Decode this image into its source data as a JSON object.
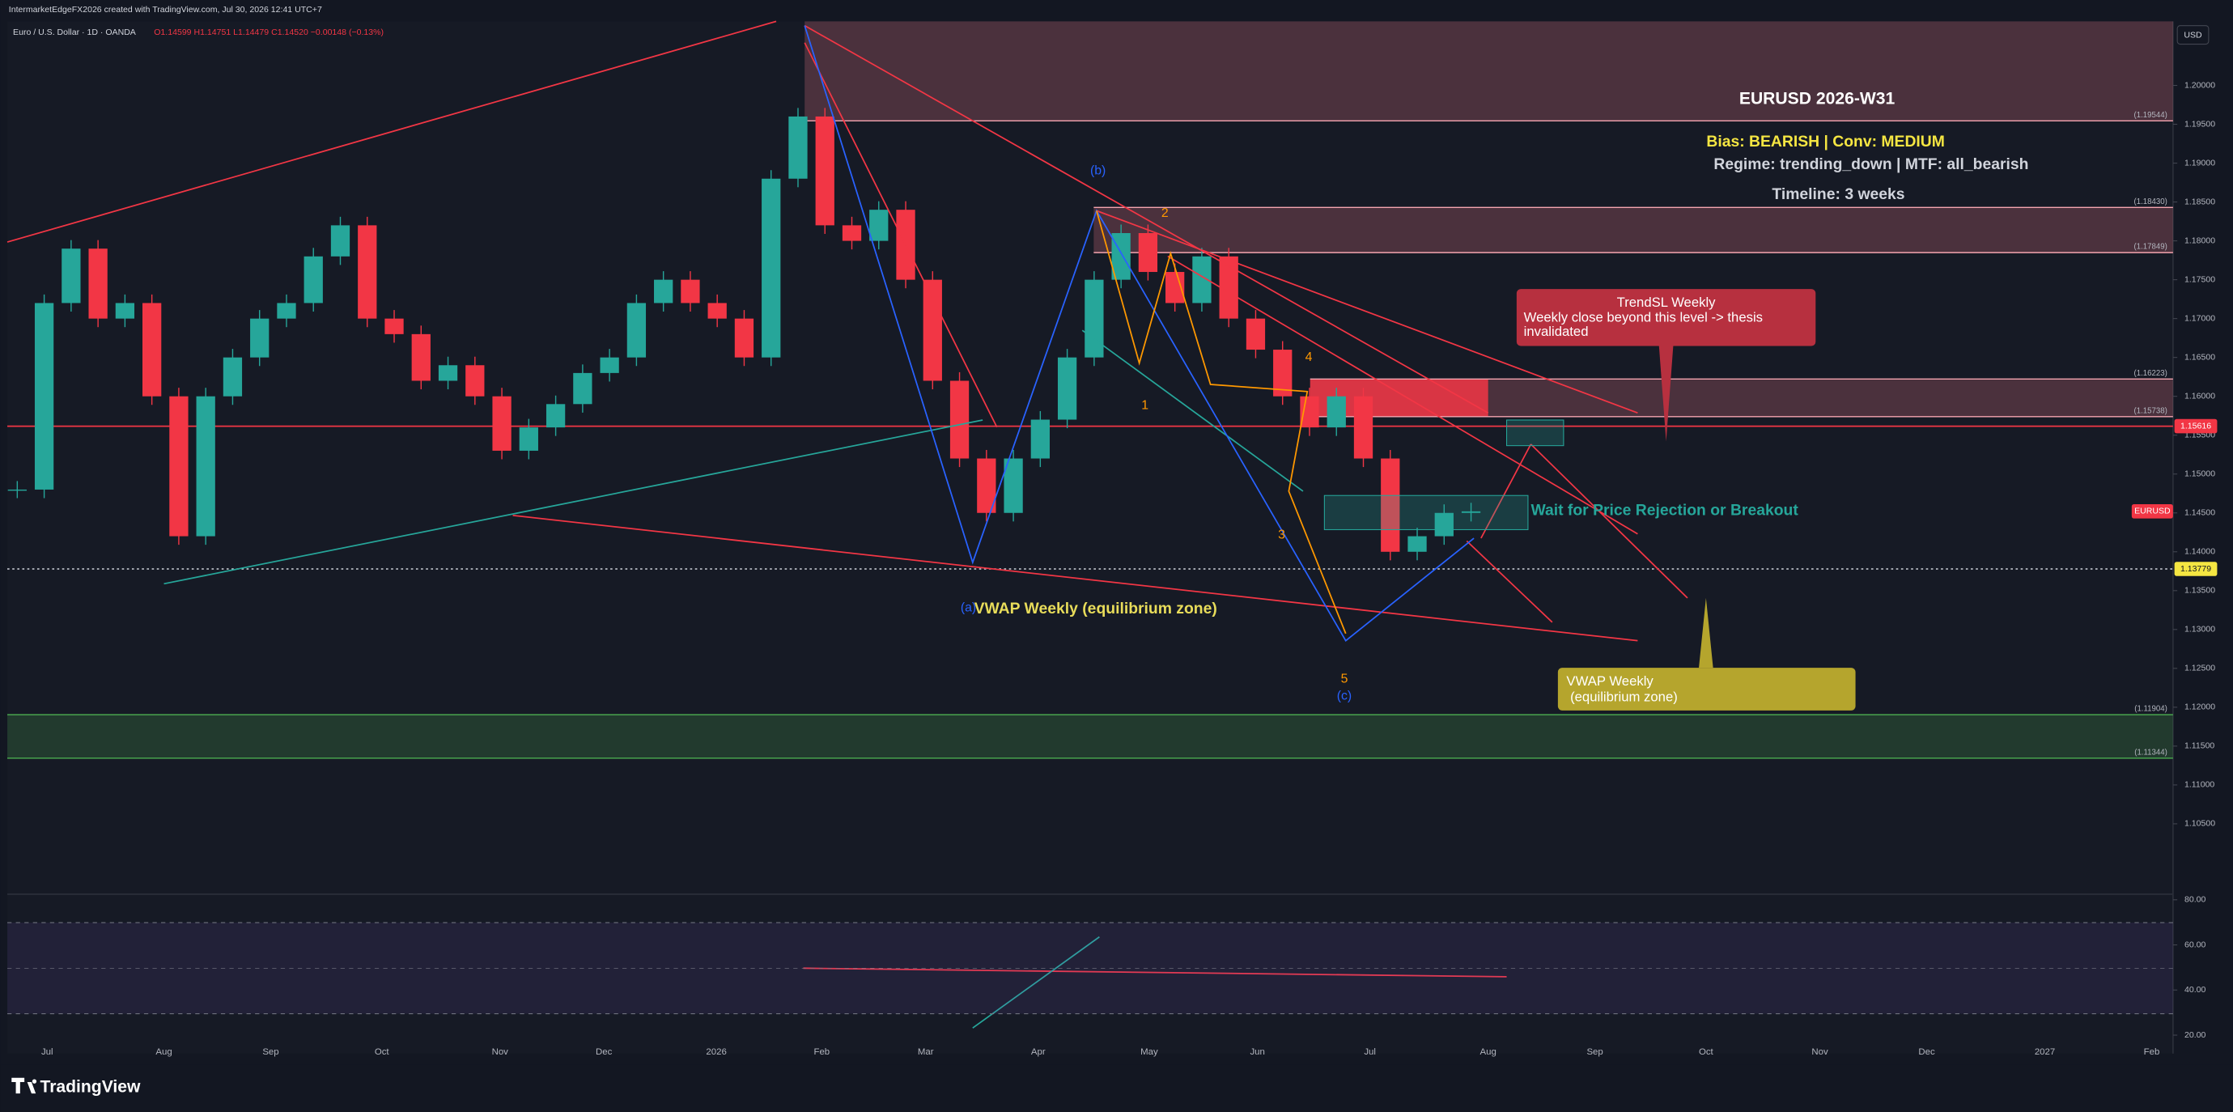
{
  "header": {
    "attribution": "IntermarketEdgeFX2026 created with TradingView.com, Jul 30, 2026 12:41 UTC+7",
    "symbol": "Euro / U.S. Dollar · 1D · OANDA",
    "ohlc": "O1.14599 H1.14751 L1.14479 C1.14520 −0.00148 (−0.13%)"
  },
  "chart_data": {
    "type": "candlestick",
    "currency": "USD",
    "ylim": [
      1.0965,
      1.20824
    ],
    "yticks": [
      {
        "value": 1.2,
        "label": "1.20000"
      },
      {
        "value": 1.195,
        "label": "1.19500"
      },
      {
        "value": 1.19,
        "label": "1.19000"
      },
      {
        "value": 1.185,
        "label": "1.18500"
      },
      {
        "value": 1.18,
        "label": "1.18000"
      },
      {
        "value": 1.175,
        "label": "1.17500"
      },
      {
        "value": 1.17,
        "label": "1.17000"
      },
      {
        "value": 1.165,
        "label": "1.16500"
      },
      {
        "value": 1.16,
        "label": "1.16000"
      },
      {
        "value": 1.155,
        "label": "1.15500"
      },
      {
        "value": 1.15,
        "label": "1.15000"
      },
      {
        "value": 1.145,
        "label": "1.14500"
      },
      {
        "value": 1.14,
        "label": "1.14000"
      },
      {
        "value": 1.135,
        "label": "1.13500"
      },
      {
        "value": 1.13,
        "label": "1.13000"
      },
      {
        "value": 1.125,
        "label": "1.12500"
      },
      {
        "value": 1.12,
        "label": "1.12000"
      },
      {
        "value": 1.115,
        "label": "1.11500"
      },
      {
        "value": 1.11,
        "label": "1.11000"
      },
      {
        "value": 1.105,
        "label": "1.10500"
      }
    ],
    "closes": [
      1.148,
      1.172,
      1.179,
      1.17,
      1.172,
      1.16,
      1.142,
      1.16,
      1.165,
      1.17,
      1.172,
      1.178,
      1.182,
      1.17,
      1.168,
      1.162,
      1.164,
      1.16,
      1.153,
      1.156,
      1.159,
      1.163,
      1.165,
      1.172,
      1.175,
      1.172,
      1.17,
      1.165,
      1.188,
      1.196,
      1.182,
      1.18,
      1.184,
      1.175,
      1.162,
      1.152,
      1.145,
      1.152,
      1.157,
      1.165,
      1.175,
      1.181,
      1.176,
      1.172,
      1.178,
      1.17,
      1.166,
      1.16,
      1.156,
      1.16,
      1.152,
      1.14,
      1.142,
      1.145,
      1.1452
    ],
    "up_color": "#26a69a",
    "down_color": "#f23645",
    "xaxis": [
      "Jul",
      "Aug",
      "Sep",
      "Oct",
      "Nov",
      "Dec",
      "2026",
      "Feb",
      "Mar",
      "Apr",
      "May",
      "Jun",
      "Jul",
      "Aug",
      "Sep",
      "Oct",
      "Nov",
      "Dec",
      "2027",
      "Feb"
    ]
  },
  "levels": [
    {
      "value": 1.19544,
      "label": "(1.19544)"
    },
    {
      "value": 1.1843,
      "label": "(1.18430)"
    },
    {
      "value": 1.17849,
      "label": "(1.17849)"
    },
    {
      "value": 1.16223,
      "label": "(1.16223)"
    },
    {
      "value": 1.15738,
      "label": "(1.15738)"
    },
    {
      "value": 1.11904,
      "label": "(1.11904)"
    },
    {
      "value": 1.11344,
      "label": "(1.11344)"
    }
  ],
  "badges": {
    "stop": {
      "value": 1.15616,
      "label": "1.15616"
    },
    "symbol": "EURUSD",
    "vwap": {
      "value": 1.13779,
      "label": "1.13779"
    }
  },
  "rsi": {
    "ylim": [
      11.8,
      82.5
    ],
    "yticks": [
      {
        "value": 80,
        "label": "80.00"
      },
      {
        "value": 60,
        "label": "60.00"
      },
      {
        "value": 40,
        "label": "40.00"
      },
      {
        "value": 20,
        "label": "20.00"
      }
    ]
  },
  "annotations": {
    "title": "EURUSD 2026-W31",
    "bias": "Bias: BEARISH | Conv: MEDIUM",
    "regime": "Regime: trending_down | MTF: all_bearish",
    "timeline": "Timeline: 3 weeks",
    "trendsl_title": "TrendSL Weekly",
    "trendsl_body": [
      "Weekly close beyond this level -> thesis",
      "invalidated"
    ],
    "wait": "Wait for Price Rejection or Breakout",
    "vwap_inline": "VWAP Weekly (equilibrium zone)",
    "vwap_box": [
      "VWAP Weekly",
      " (equilibrium zone)"
    ]
  },
  "waves": [
    "(b)",
    "2",
    "1",
    "4",
    "3",
    "5",
    "(c)",
    "(a)"
  ],
  "footer": "TradingView"
}
